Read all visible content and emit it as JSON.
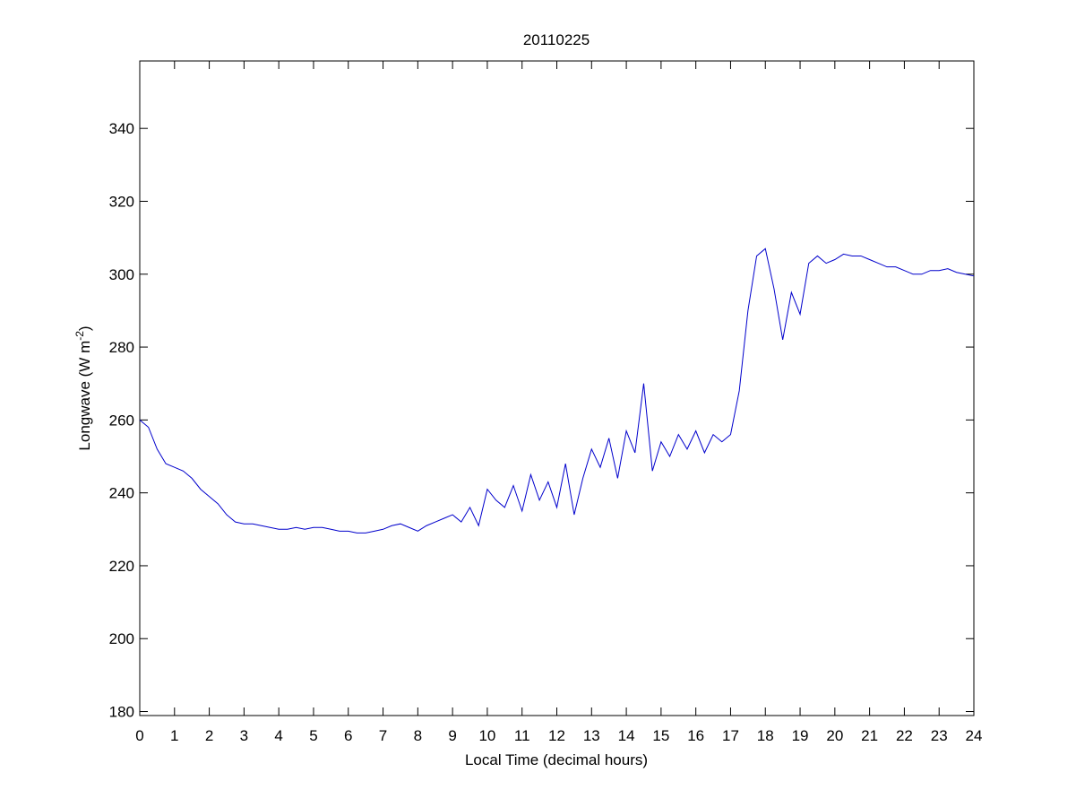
{
  "chart_data": {
    "type": "line",
    "title": "20110225",
    "xlabel": "Local Time (decimal hours)",
    "ylabel": {
      "text": "Longwave (W m",
      "sup": "-2",
      "close": ")"
    },
    "x": [
      0,
      0.25,
      0.5,
      0.75,
      1,
      1.25,
      1.5,
      1.75,
      2,
      2.25,
      2.5,
      2.75,
      3,
      3.25,
      3.5,
      3.75,
      4,
      4.25,
      4.5,
      4.75,
      5,
      5.25,
      5.5,
      5.75,
      6,
      6.25,
      6.5,
      6.75,
      7,
      7.25,
      7.5,
      7.75,
      8,
      8.25,
      8.5,
      8.75,
      9,
      9.25,
      9.5,
      9.75,
      10,
      10.25,
      10.5,
      10.75,
      11,
      11.25,
      11.5,
      11.75,
      12,
      12.25,
      12.5,
      12.75,
      13,
      13.25,
      13.5,
      13.75,
      14,
      14.25,
      14.5,
      14.75,
      15,
      15.25,
      15.5,
      15.75,
      16,
      16.25,
      16.5,
      16.75,
      17,
      17.25,
      17.5,
      17.75,
      18,
      18.25,
      18.5,
      18.75,
      19,
      19.25,
      19.5,
      19.75,
      20,
      20.25,
      20.5,
      20.75,
      21,
      21.25,
      21.5,
      21.75,
      22,
      22.25,
      22.5,
      22.75,
      23,
      23.25,
      23.5,
      23.75,
      24
    ],
    "series": [
      {
        "color": "#0000cc",
        "values": [
          260,
          258,
          252,
          248,
          247,
          246,
          244,
          241,
          239,
          237,
          234,
          232,
          231.5,
          231.5,
          231,
          230.5,
          230,
          230,
          230.5,
          230,
          230.5,
          230.5,
          230,
          229.5,
          229.5,
          229,
          229,
          229.5,
          230,
          231,
          231.5,
          230.5,
          229.5,
          231,
          232,
          233,
          234,
          232,
          236,
          231,
          241,
          238,
          236,
          242,
          235,
          245,
          238,
          243,
          236,
          248,
          234,
          244,
          252,
          247,
          255,
          244,
          257,
          251,
          270,
          246,
          254,
          250,
          256,
          252,
          257,
          251,
          256,
          254,
          256,
          268,
          290,
          305,
          307,
          296,
          282,
          295,
          289,
          303,
          305,
          303,
          304,
          305.5,
          305,
          305,
          304,
          303,
          302,
          302,
          301,
          300,
          300,
          301,
          301,
          301.5,
          300.5,
          300,
          299.5
        ]
      }
    ],
    "xlim": [
      0,
      24
    ],
    "xticks": [
      0,
      1,
      2,
      3,
      4,
      5,
      6,
      7,
      8,
      9,
      10,
      11,
      12,
      13,
      14,
      15,
      16,
      17,
      18,
      19,
      20,
      21,
      22,
      23,
      24
    ],
    "ylim": [
      178.9,
      358.5
    ],
    "yticks": [
      180,
      200,
      220,
      240,
      260,
      280,
      300,
      320,
      340
    ],
    "grid": false
  }
}
